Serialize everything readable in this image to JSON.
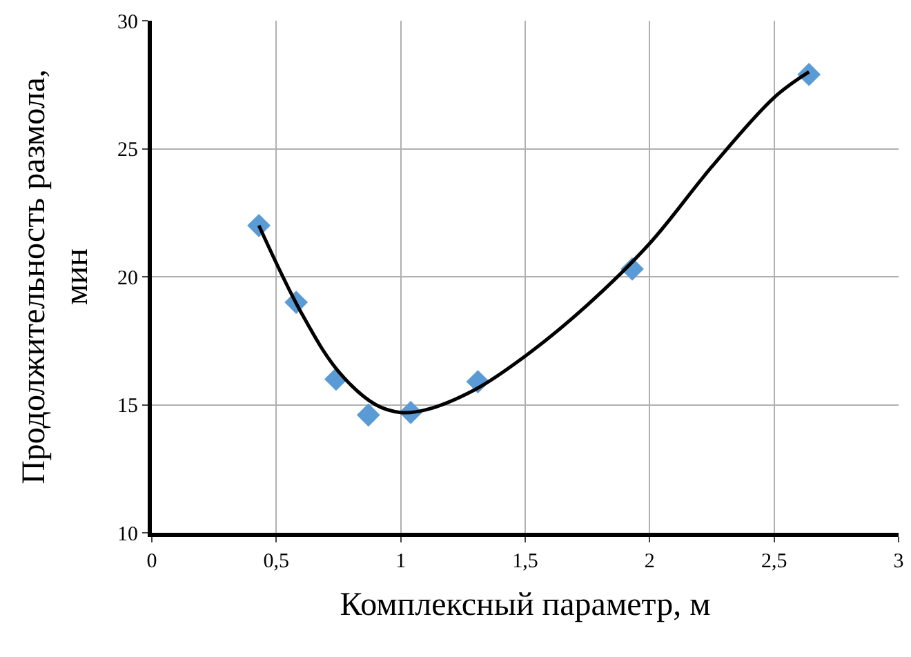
{
  "chart_data": {
    "type": "scatter",
    "xlabel": "Комплексный параметр, м",
    "ylabel": "Продолжительность размола,\nмин",
    "xlim": [
      0,
      3
    ],
    "ylim": [
      10,
      30
    ],
    "xticks": [
      0,
      {
        "value": 0.5,
        "label": "0,5"
      },
      1,
      {
        "value": 1.5,
        "label": "1,5"
      },
      2,
      {
        "value": 2.5,
        "label": "2,5"
      },
      3
    ],
    "yticks": [
      10,
      15,
      20,
      25,
      30
    ],
    "grid": true,
    "marker": "diamond",
    "series": [
      {
        "color": "#5b9bd5",
        "x": [
          0.43,
          0.58,
          0.74,
          0.87,
          1.04,
          1.31,
          1.93,
          2.64
        ],
        "values": [
          22,
          19,
          16,
          14.6,
          14.7,
          15.9,
          20.3,
          27.9
        ]
      },
      {
        "type": "line",
        "color": "#000000",
        "marker": "none",
        "line_style": "solid",
        "x": [
          0.43,
          0.6,
          0.75,
          0.9,
          1.0,
          1.1,
          1.3,
          1.5,
          1.75,
          2.0,
          2.25,
          2.5,
          2.64
        ],
        "values": [
          22,
          18.6,
          16.3,
          15.0,
          14.7,
          14.8,
          15.6,
          16.9,
          18.9,
          21.3,
          24.3,
          27.0,
          28.0
        ]
      }
    ]
  }
}
